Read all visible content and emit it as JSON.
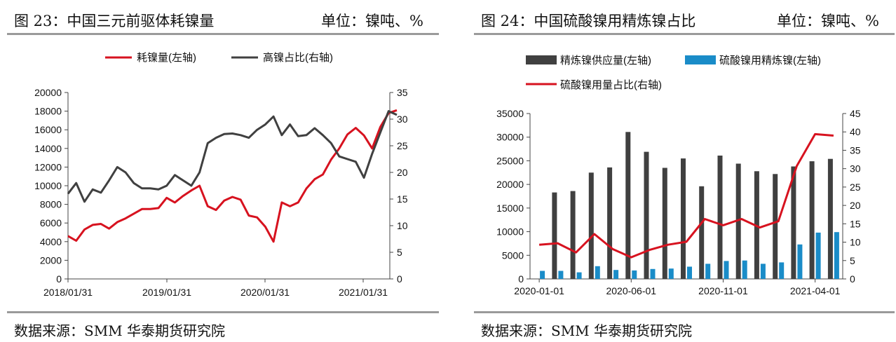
{
  "panels": [
    {
      "title": "图 23：中国三元前驱体耗镍量",
      "unit": "单位：镍吨、%",
      "source": "数据来源：SMM 华泰期货研究院"
    },
    {
      "title": "图 24：中国硫酸镍用精炼镍占比",
      "unit": "单位：镍吨、%",
      "source": "数据来源：SMM 华泰期货研究院"
    }
  ],
  "chart_data": [
    {
      "type": "line",
      "title": "",
      "legend_position": "top",
      "x_tick_labels": [
        "2018/01/31",
        "2019/01/31",
        "2020/01/31",
        "2021/01/31"
      ],
      "y_left": {
        "range": [
          0,
          20000
        ],
        "ticks": [
          0,
          2000,
          4000,
          6000,
          8000,
          10000,
          12000,
          14000,
          16000,
          18000,
          20000
        ]
      },
      "y_right": {
        "range": [
          0,
          35
        ],
        "ticks": [
          0,
          5,
          10,
          15,
          20,
          25,
          30,
          35
        ]
      },
      "grid": false,
      "series": [
        {
          "name": "耗镍量(左轴)",
          "axis": "left",
          "color": "#d7121f",
          "values": [
            4600,
            4100,
            5300,
            5800,
            5900,
            5400,
            6100,
            6500,
            7000,
            7500,
            7500,
            7600,
            8700,
            8200,
            8900,
            9500,
            10000,
            7800,
            7400,
            8400,
            8800,
            8500,
            6800,
            6600,
            5600,
            4000,
            8200,
            7800,
            8200,
            9700,
            10700,
            11200,
            12800,
            14000,
            15500,
            16200,
            15400,
            14000,
            16300,
            17800,
            18100
          ]
        },
        {
          "name": "高镍占比(右轴)",
          "axis": "right",
          "color": "#404040",
          "values": [
            16,
            18,
            14.5,
            16.8,
            16.2,
            18.5,
            21,
            20,
            18,
            17,
            17,
            16.8,
            17.5,
            19.5,
            18.5,
            17.5,
            20,
            25.5,
            26.5,
            27.2,
            27.3,
            27,
            26.5,
            28,
            29,
            30.5,
            27,
            29,
            26.8,
            27,
            28.3,
            27,
            25.5,
            23,
            22.5,
            22,
            19,
            23.5,
            27.5,
            31.5,
            30.8
          ]
        }
      ]
    },
    {
      "type": "bar",
      "title": "",
      "legend_position": "top",
      "x_tick_labels": [
        "2020-01-01",
        "2020-06-01",
        "2020-11-01",
        "2021-04-01"
      ],
      "categories": [
        "2020-01",
        "2020-02",
        "2020-03",
        "2020-04",
        "2020-05",
        "2020-06",
        "2020-07",
        "2020-08",
        "2020-09",
        "2020-10",
        "2020-11",
        "2020-12",
        "2021-01",
        "2021-02",
        "2021-03",
        "2021-04",
        "2021-05"
      ],
      "y_left": {
        "range": [
          0,
          35000
        ],
        "ticks": [
          0,
          5000,
          10000,
          15000,
          20000,
          25000,
          30000,
          35000
        ]
      },
      "y_right": {
        "range": [
          0,
          45
        ],
        "ticks": [
          0,
          5,
          10,
          15,
          20,
          25,
          30,
          35,
          40,
          45
        ]
      },
      "grid": false,
      "series": [
        {
          "name": "精炼镍供应量(左轴)",
          "axis": "left",
          "kind": "bar",
          "color": "#404040",
          "values": [
            null,
            18300,
            18600,
            22500,
            23600,
            31100,
            26900,
            23500,
            25500,
            19600,
            26100,
            24400,
            22800,
            22200,
            23800,
            24900,
            25400
          ]
        },
        {
          "name": "硫酸镍用精炼镍(左轴)",
          "axis": "left",
          "kind": "bar",
          "color": "#1a8cc8",
          "values": [
            1700,
            1700,
            1400,
            2700,
            1900,
            1800,
            2100,
            2200,
            2600,
            3200,
            3800,
            3900,
            3200,
            3500,
            7300,
            9800,
            9900
          ]
        },
        {
          "name": "硫酸镍用量占比(右轴)",
          "axis": "right",
          "kind": "line",
          "color": "#d7121f",
          "values": [
            9.3,
            9.7,
            7.2,
            12.2,
            8.1,
            5.9,
            7.9,
            9.3,
            10.1,
            16.3,
            14.6,
            16.3,
            14.0,
            15.7,
            30.7,
            39.4,
            39.0
          ]
        }
      ]
    }
  ]
}
